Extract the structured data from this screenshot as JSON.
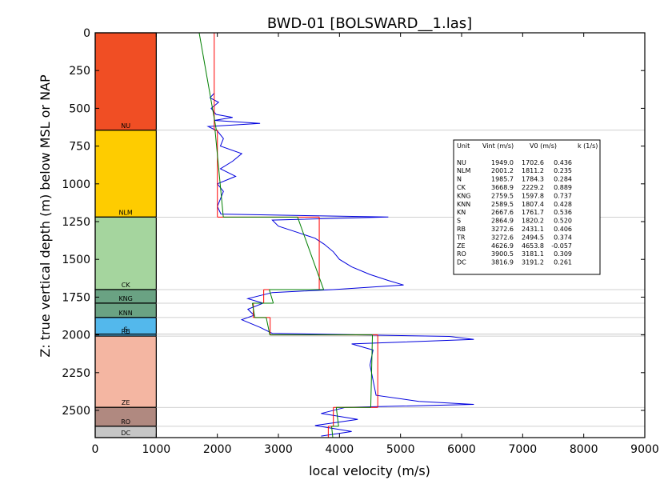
{
  "chart_data": {
    "type": "line",
    "title": "BWD-01 [BOLSWARD__1.las]",
    "xlabel": "local velocity (m/s)",
    "ylabel": "Z: true vertical depth (m) below MSL or NAP",
    "xlim": [
      0,
      9000
    ],
    "ylim": [
      2680,
      0
    ],
    "x_ticks": [
      "0",
      "1000",
      "2000",
      "3000",
      "4000",
      "5000",
      "6000",
      "7000",
      "8000",
      "9000"
    ],
    "y_ticks": [
      "0",
      "250",
      "500",
      "750",
      "1000",
      "1250",
      "1500",
      "1750",
      "2000",
      "2250",
      "2500"
    ],
    "units": [
      {
        "name": "NU",
        "top": 0,
        "base": 645,
        "color": "#f04e24"
      },
      {
        "name": "NLM",
        "top": 645,
        "base": 1220,
        "color": "#fecc00"
      },
      {
        "name": "CK",
        "top": 1220,
        "base": 1700,
        "color": "#a5d59e"
      },
      {
        "name": "KNG",
        "top": 1700,
        "base": 1790,
        "color": "#6aa283"
      },
      {
        "name": "KNN",
        "top": 1790,
        "base": 1885,
        "color": "#6aa283"
      },
      {
        "name": "S",
        "top": 1885,
        "base": 1995,
        "color": "#53b8ec"
      },
      {
        "name": "RB",
        "top": 1995,
        "base": 2008,
        "color": "#53b8ec"
      },
      {
        "name": "ZE",
        "top": 2008,
        "base": 2480,
        "color": "#f4b6a2"
      },
      {
        "name": "RO",
        "top": 2480,
        "base": 2605,
        "color": "#b08980"
      },
      {
        "name": "DC",
        "top": 2605,
        "base": 2680,
        "color": "#c6c6c6"
      }
    ],
    "interval_velocity": [
      {
        "unit": "NU",
        "top": 0,
        "base": 645,
        "vint": 1949.0
      },
      {
        "unit": "NLM",
        "top": 645,
        "base": 1220,
        "vint": 2001.2
      },
      {
        "unit": "CK",
        "top": 1220,
        "base": 1700,
        "vint": 3668.9
      },
      {
        "unit": "KNG",
        "top": 1700,
        "base": 1790,
        "vint": 2759.5
      },
      {
        "unit": "KNN",
        "top": 1790,
        "base": 1885,
        "vint": 2589.5
      },
      {
        "unit": "S",
        "top": 1885,
        "base": 2000,
        "vint": 2864.9
      },
      {
        "unit": "ZE",
        "top": 2000,
        "base": 2480,
        "vint": 4626.9
      },
      {
        "unit": "RO",
        "top": 2480,
        "base": 2605,
        "vint": 3900.5
      },
      {
        "unit": "DC",
        "top": 2605,
        "base": 2680,
        "vint": 3816.9
      }
    ],
    "linear_trend": [
      {
        "unit": "NU",
        "top": 0,
        "base": 645,
        "v0": 1702.6,
        "k": 0.436
      },
      {
        "unit": "NLM",
        "top": 645,
        "base": 1220,
        "v0": 1811.2,
        "k": 0.235
      },
      {
        "unit": "CK",
        "top": 1220,
        "base": 1700,
        "v0": 2229.2,
        "k": 0.889
      },
      {
        "unit": "KNG",
        "top": 1700,
        "base": 1790,
        "v0": 1597.8,
        "k": 0.737
      },
      {
        "unit": "KNN",
        "top": 1790,
        "base": 1885,
        "v0": 1807.4,
        "k": 0.428
      },
      {
        "unit": "S",
        "top": 1885,
        "base": 2000,
        "v0": 1820.2,
        "k": 0.52
      },
      {
        "unit": "ZE",
        "top": 2000,
        "base": 2480,
        "v0": 4653.8,
        "k": -0.057
      },
      {
        "unit": "RO",
        "top": 2480,
        "base": 2605,
        "v0": 3181.1,
        "k": 0.309
      },
      {
        "unit": "DC",
        "top": 2605,
        "base": 2680,
        "v0": 3191.2,
        "k": 0.261
      }
    ],
    "sonic_log": [
      {
        "depth": 400,
        "v": 1950
      },
      {
        "depth": 430,
        "v": 1880
      },
      {
        "depth": 460,
        "v": 2020
      },
      {
        "depth": 500,
        "v": 1900
      },
      {
        "depth": 540,
        "v": 1980
      },
      {
        "depth": 560,
        "v": 2250
      },
      {
        "depth": 580,
        "v": 1950
      },
      {
        "depth": 600,
        "v": 2700
      },
      {
        "depth": 620,
        "v": 1850
      },
      {
        "depth": 650,
        "v": 2000
      },
      {
        "depth": 700,
        "v": 2100
      },
      {
        "depth": 750,
        "v": 2050
      },
      {
        "depth": 800,
        "v": 2400
      },
      {
        "depth": 850,
        "v": 2250
      },
      {
        "depth": 900,
        "v": 2050
      },
      {
        "depth": 950,
        "v": 2300
      },
      {
        "depth": 1000,
        "v": 2000
      },
      {
        "depth": 1050,
        "v": 2100
      },
      {
        "depth": 1100,
        "v": 2050
      },
      {
        "depth": 1150,
        "v": 2000
      },
      {
        "depth": 1200,
        "v": 2060
      },
      {
        "depth": 1220,
        "v": 4800
      },
      {
        "depth": 1240,
        "v": 2900
      },
      {
        "depth": 1280,
        "v": 3000
      },
      {
        "depth": 1320,
        "v": 3300
      },
      {
        "depth": 1360,
        "v": 3600
      },
      {
        "depth": 1400,
        "v": 3750
      },
      {
        "depth": 1450,
        "v": 3900
      },
      {
        "depth": 1500,
        "v": 4000
      },
      {
        "depth": 1550,
        "v": 4200
      },
      {
        "depth": 1600,
        "v": 4500
      },
      {
        "depth": 1640,
        "v": 4800
      },
      {
        "depth": 1670,
        "v": 5050
      },
      {
        "depth": 1700,
        "v": 3900
      },
      {
        "depth": 1720,
        "v": 2900
      },
      {
        "depth": 1760,
        "v": 2500
      },
      {
        "depth": 1790,
        "v": 2750
      },
      {
        "depth": 1830,
        "v": 2500
      },
      {
        "depth": 1870,
        "v": 2600
      },
      {
        "depth": 1900,
        "v": 2400
      },
      {
        "depth": 1950,
        "v": 2700
      },
      {
        "depth": 1990,
        "v": 2900
      },
      {
        "depth": 2010,
        "v": 5800
      },
      {
        "depth": 2030,
        "v": 6200
      },
      {
        "depth": 2060,
        "v": 4200
      },
      {
        "depth": 2100,
        "v": 4550
      },
      {
        "depth": 2200,
        "v": 4500
      },
      {
        "depth": 2300,
        "v": 4550
      },
      {
        "depth": 2400,
        "v": 4600
      },
      {
        "depth": 2440,
        "v": 5300
      },
      {
        "depth": 2460,
        "v": 6200
      },
      {
        "depth": 2480,
        "v": 4100
      },
      {
        "depth": 2520,
        "v": 3700
      },
      {
        "depth": 2560,
        "v": 4300
      },
      {
        "depth": 2600,
        "v": 3600
      },
      {
        "depth": 2640,
        "v": 4200
      },
      {
        "depth": 2670,
        "v": 3700
      }
    ],
    "table": {
      "header": [
        "Unit",
        "Vint (m/s)",
        "V0 (m/s)",
        "k (1/s)"
      ],
      "rows": [
        [
          "NU",
          "1949.0",
          "1702.6",
          "0.436"
        ],
        [
          "NLM",
          "2001.2",
          "1811.2",
          "0.235"
        ],
        [
          "N",
          "1985.7",
          "1784.3",
          "0.284"
        ],
        [
          "CK",
          "3668.9",
          "2229.2",
          "0.889"
        ],
        [
          "KNG",
          "2759.5",
          "1597.8",
          "0.737"
        ],
        [
          "KNN",
          "2589.5",
          "1807.4",
          "0.428"
        ],
        [
          "KN",
          "2667.6",
          "1761.7",
          "0.536"
        ],
        [
          "S",
          "2864.9",
          "1820.2",
          "0.520"
        ],
        [
          "RB",
          "3272.6",
          "2431.1",
          "0.406"
        ],
        [
          "TR",
          "3272.6",
          "2494.5",
          "0.374"
        ],
        [
          "ZE",
          "4626.9",
          "4653.8",
          "-0.057"
        ],
        [
          "RO",
          "3900.5",
          "3181.1",
          "0.309"
        ],
        [
          "DC",
          "3816.9",
          "3191.2",
          "0.261"
        ]
      ]
    },
    "colors": {
      "sonic": "#0000dd",
      "interval": "#ff0000",
      "trend": "#007f00",
      "boundary": "#c0c0c0"
    }
  }
}
